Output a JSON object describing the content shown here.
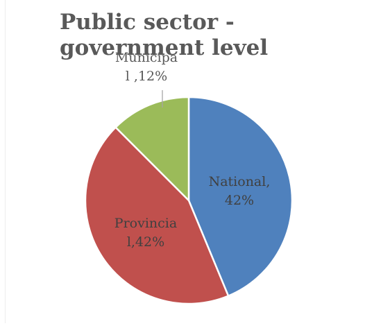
{
  "chart_data": {
    "type": "pie",
    "title": "Public sector - government level",
    "slices": [
      {
        "name": "National",
        "value": 42,
        "color": "#4f81bd",
        "label_lines": [
          "National,",
          "42%"
        ]
      },
      {
        "name": "Provincial",
        "value": 42,
        "color": "#c0504d",
        "label_lines": [
          "Provincia",
          "l,42%"
        ]
      },
      {
        "name": "Municipal",
        "value": 12,
        "color": "#9bbb59",
        "label_lines": [
          "Municipa",
          "l ,12%"
        ]
      }
    ],
    "legend": "none",
    "data_labels": "category and percentage"
  },
  "colors": {
    "title": "#595959",
    "label_inside": "#404040",
    "label_outside": "#595959",
    "leader_line": "#a6a6a6",
    "slice_border": "#ffffff"
  }
}
